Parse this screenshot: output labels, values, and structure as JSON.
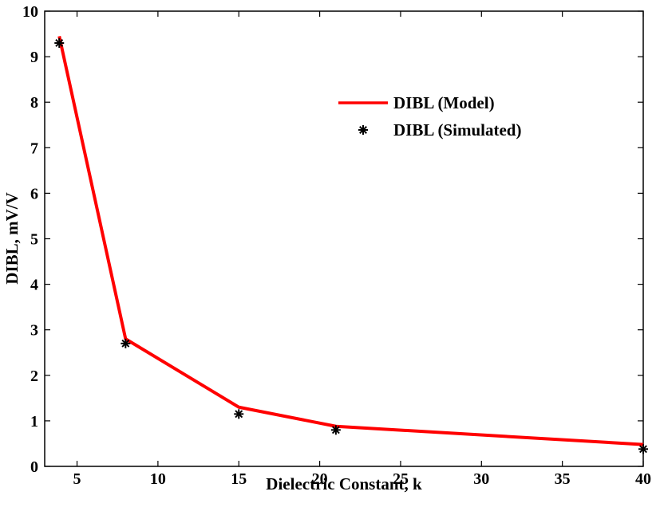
{
  "chart_data": {
    "type": "line",
    "xlabel": "Dielectric Constant, k",
    "ylabel": "DIBL, mV/V",
    "xlim": [
      3,
      40
    ],
    "ylim": [
      0,
      10
    ],
    "xticks": [
      5,
      10,
      15,
      20,
      25,
      30,
      35,
      40
    ],
    "yticks": [
      0,
      1,
      2,
      3,
      4,
      5,
      6,
      7,
      8,
      9,
      10
    ],
    "grid": false,
    "legend_position": "top-right",
    "series": [
      {
        "name": "DIBL (Model)",
        "kind": "line",
        "color": "#ff0000",
        "x": [
          3.9,
          8,
          15,
          21,
          40
        ],
        "y": [
          9.45,
          2.8,
          1.3,
          0.88,
          0.48
        ]
      },
      {
        "name": "DIBL (Simulated)",
        "kind": "marker",
        "marker": "asterisk",
        "color": "#000000",
        "x": [
          3.9,
          8,
          15,
          21,
          40
        ],
        "y": [
          9.3,
          2.7,
          1.15,
          0.8,
          0.38
        ]
      }
    ]
  }
}
